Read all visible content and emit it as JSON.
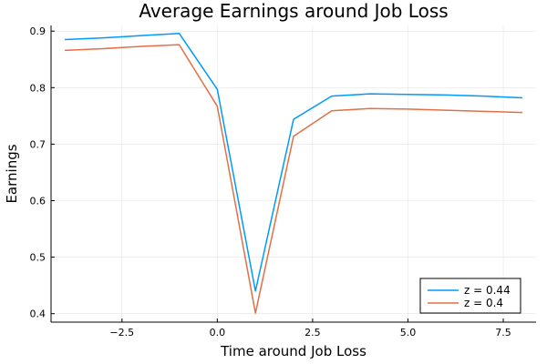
{
  "chart_data": {
    "type": "line",
    "title": "Average Earnings around Job Loss",
    "xlabel": "Time around Job Loss",
    "ylabel": "Earnings",
    "xlim": [
      -4.36,
      8.36
    ],
    "ylim": [
      0.385,
      0.91
    ],
    "xticks": [
      -2.5,
      0.0,
      2.5,
      5.0,
      7.5
    ],
    "xtick_labels": [
      "−2.5",
      "0.0",
      "2.5",
      "5.0",
      "7.5"
    ],
    "yticks": [
      0.4,
      0.5,
      0.6,
      0.7,
      0.8,
      0.9
    ],
    "ytick_labels": [
      "0.4",
      "0.5",
      "0.6",
      "0.7",
      "0.8",
      "0.9"
    ],
    "grid": true,
    "legend_position": "bottom-right",
    "x": [
      -4,
      -3,
      -2,
      -1,
      0,
      1,
      2,
      3,
      4,
      5,
      6,
      7,
      8
    ],
    "series": [
      {
        "name": "z = 0.44",
        "color": "#009AFA",
        "values": [
          0.885,
          0.888,
          0.892,
          0.896,
          0.797,
          0.44,
          0.744,
          0.785,
          0.789,
          0.788,
          0.787,
          0.785,
          0.782
        ]
      },
      {
        "name": "z = 0.4",
        "color": "#E26F46",
        "values": [
          0.866,
          0.869,
          0.873,
          0.876,
          0.767,
          0.401,
          0.714,
          0.759,
          0.763,
          0.762,
          0.76,
          0.758,
          0.756
        ]
      }
    ]
  }
}
